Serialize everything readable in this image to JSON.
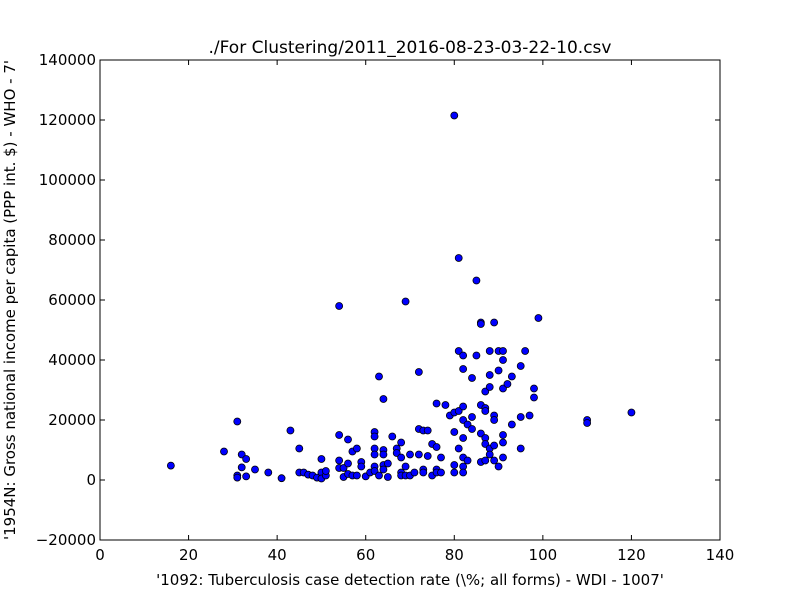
{
  "chart_data": {
    "type": "scatter",
    "title": "./For Clustering/2011_2016-08-23-03-22-10.csv",
    "xlabel": "'1092: Tuberculosis case detection rate  (\\%; all forms) - WDI - 1007'",
    "ylabel": "'1954N: Gross national income per capita (PPP int. $) - WHO - 7'",
    "xlim": [
      0,
      140
    ],
    "ylim": [
      -20000,
      140000
    ],
    "x_ticks": [
      "0",
      "20",
      "40",
      "60",
      "80",
      "100",
      "120",
      "140"
    ],
    "y_ticks": [
      "−20000",
      "0",
      "20000",
      "40000",
      "60000",
      "80000",
      "100000",
      "120000",
      "140000"
    ],
    "grid": false,
    "marker_color": "#0000ff",
    "marker_edge_color": "#000000",
    "points": [
      [
        16,
        4800
      ],
      [
        28,
        9500
      ],
      [
        31,
        19500
      ],
      [
        31,
        1500
      ],
      [
        31,
        800
      ],
      [
        32,
        4200
      ],
      [
        32,
        8500
      ],
      [
        33,
        7000
      ],
      [
        33,
        1200
      ],
      [
        35,
        3500
      ],
      [
        38,
        2500
      ],
      [
        41,
        600
      ],
      [
        43,
        16500
      ],
      [
        45,
        10500
      ],
      [
        45,
        2500
      ],
      [
        46,
        2500
      ],
      [
        47,
        1800
      ],
      [
        48,
        1500
      ],
      [
        49,
        800
      ],
      [
        50,
        7000
      ],
      [
        50,
        2500
      ],
      [
        50,
        500
      ],
      [
        51,
        1500
      ],
      [
        51,
        3000
      ],
      [
        54,
        58000
      ],
      [
        54,
        15000
      ],
      [
        54,
        6500
      ],
      [
        54,
        4000
      ],
      [
        55,
        1000
      ],
      [
        55,
        4000
      ],
      [
        56,
        13500
      ],
      [
        56,
        5500
      ],
      [
        56,
        2000
      ],
      [
        57,
        9500
      ],
      [
        57,
        1500
      ],
      [
        58,
        10500
      ],
      [
        58,
        1500
      ],
      [
        59,
        6000
      ],
      [
        59,
        4500
      ],
      [
        60,
        1200
      ],
      [
        61,
        2500
      ],
      [
        62,
        16000
      ],
      [
        62,
        14500
      ],
      [
        62,
        10500
      ],
      [
        62,
        8500
      ],
      [
        62,
        4500
      ],
      [
        62,
        3000
      ],
      [
        63,
        34500
      ],
      [
        63,
        1500
      ],
      [
        64,
        27000
      ],
      [
        64,
        10000
      ],
      [
        64,
        8500
      ],
      [
        64,
        5000
      ],
      [
        64,
        3500
      ],
      [
        65,
        1000
      ],
      [
        65,
        5500
      ],
      [
        66,
        14500
      ],
      [
        67,
        10500
      ],
      [
        67,
        9000
      ],
      [
        68,
        12500
      ],
      [
        68,
        7500
      ],
      [
        68,
        2500
      ],
      [
        68,
        1500
      ],
      [
        69,
        59500
      ],
      [
        69,
        4500
      ],
      [
        69,
        1500
      ],
      [
        70,
        8500
      ],
      [
        70,
        1500
      ],
      [
        71,
        2500
      ],
      [
        72,
        36000
      ],
      [
        72,
        17000
      ],
      [
        72,
        8500
      ],
      [
        73,
        16500
      ],
      [
        73,
        3500
      ],
      [
        73,
        2500
      ],
      [
        74,
        16500
      ],
      [
        74,
        8000
      ],
      [
        75,
        12000
      ],
      [
        75,
        1500
      ],
      [
        76,
        11000
      ],
      [
        76,
        25500
      ],
      [
        76,
        3500
      ],
      [
        76,
        2500
      ],
      [
        77,
        7500
      ],
      [
        77,
        2500
      ],
      [
        78,
        25000
      ],
      [
        79,
        21500
      ],
      [
        80,
        121500
      ],
      [
        80,
        22500
      ],
      [
        80,
        16000
      ],
      [
        80,
        5000
      ],
      [
        80,
        2500
      ],
      [
        81,
        74000
      ],
      [
        81,
        43000
      ],
      [
        81,
        23000
      ],
      [
        81,
        10500
      ],
      [
        82,
        41500
      ],
      [
        82,
        37000
      ],
      [
        82,
        24500
      ],
      [
        82,
        20000
      ],
      [
        82,
        14000
      ],
      [
        82,
        7500
      ],
      [
        82,
        4500
      ],
      [
        82,
        2500
      ],
      [
        83,
        18500
      ],
      [
        83,
        6500
      ],
      [
        84,
        34000
      ],
      [
        84,
        21000
      ],
      [
        84,
        17000
      ],
      [
        85,
        66500
      ],
      [
        85,
        41500
      ],
      [
        86,
        52500
      ],
      [
        86,
        52000
      ],
      [
        86,
        25000
      ],
      [
        86,
        15500
      ],
      [
        86,
        6000
      ],
      [
        87,
        24000
      ],
      [
        87,
        23000
      ],
      [
        87,
        14000
      ],
      [
        87,
        12000
      ],
      [
        87,
        6500
      ],
      [
        87,
        29500
      ],
      [
        88,
        43000
      ],
      [
        88,
        35000
      ],
      [
        88,
        31000
      ],
      [
        88,
        10500
      ],
      [
        88,
        8500
      ],
      [
        89,
        52500
      ],
      [
        89,
        21500
      ],
      [
        89,
        20000
      ],
      [
        89,
        11500
      ],
      [
        89,
        6500
      ],
      [
        90,
        43000
      ],
      [
        90,
        36500
      ],
      [
        90,
        4500
      ],
      [
        91,
        43000
      ],
      [
        91,
        40000
      ],
      [
        91,
        30500
      ],
      [
        91,
        15000
      ],
      [
        91,
        12500
      ],
      [
        91,
        7500
      ],
      [
        92,
        32000
      ],
      [
        93,
        34500
      ],
      [
        93,
        18500
      ],
      [
        95,
        38000
      ],
      [
        95,
        21000
      ],
      [
        95,
        10500
      ],
      [
        96,
        43000
      ],
      [
        97,
        21500
      ],
      [
        98,
        30500
      ],
      [
        98,
        27500
      ],
      [
        99,
        54000
      ],
      [
        110,
        20000
      ],
      [
        110,
        19000
      ],
      [
        120,
        22500
      ]
    ]
  }
}
